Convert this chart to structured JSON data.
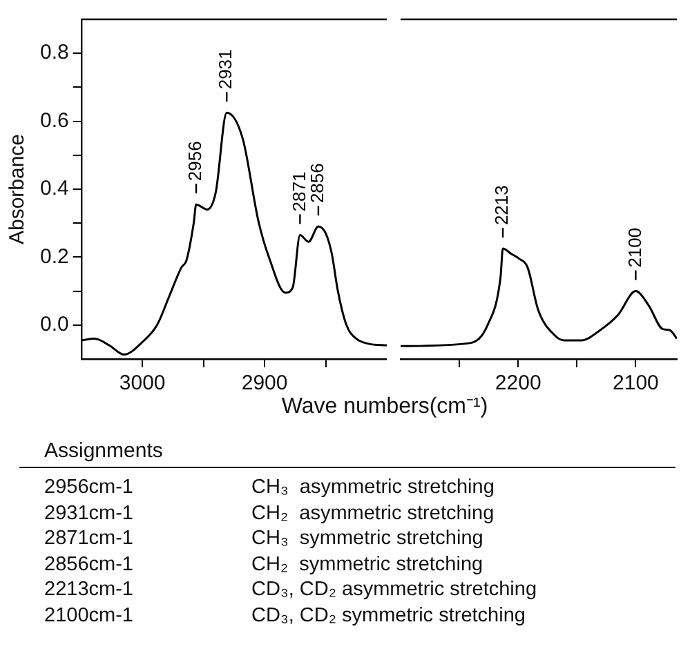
{
  "chart_data": [
    {
      "type": "line",
      "xlabel": "Wave numbers(cm⁻¹)",
      "ylabel": "Absorbance",
      "xlim": [
        3050,
        2800
      ],
      "ylim": [
        -0.1,
        0.9
      ],
      "xticks": [
        3000,
        {
          "value": 2950,
          "label": null
        },
        2900,
        {
          "value": 2850,
          "label": null
        }
      ],
      "yticks": [
        {
          "value": 0,
          "label": "0.0"
        },
        {
          "value": 0.1,
          "label": null
        },
        0.2,
        {
          "value": 0.3,
          "label": null
        },
        0.4,
        {
          "value": 0.5,
          "label": null
        },
        0.6,
        {
          "value": 0.7,
          "label": null
        },
        0.8
      ],
      "grid": false,
      "legend": false,
      "marker": "none",
      "line_style": "solid",
      "color": "#000000",
      "x": [
        3050,
        3039,
        3027,
        3015,
        3000,
        2988,
        2978,
        2968,
        2964,
        2958,
        2956,
        2947,
        2940,
        2931,
        2918,
        2905,
        2896,
        2883,
        2877,
        2871,
        2864,
        2856,
        2850,
        2845,
        2840,
        2833,
        2825,
        2815,
        2800
      ],
      "values": [
        -0.045,
        -0.04,
        -0.06,
        -0.087,
        -0.05,
        0.0,
        0.085,
        0.17,
        0.19,
        0.3,
        0.355,
        0.34,
        0.39,
        0.625,
        0.55,
        0.305,
        0.195,
        0.095,
        0.11,
        0.265,
        0.245,
        0.29,
        0.27,
        0.21,
        0.1,
        0.0,
        -0.04,
        -0.055,
        -0.06
      ],
      "annotations": [
        {
          "text": "2956",
          "x": 2956,
          "y": 0.355
        },
        {
          "text": "2931",
          "x": 2931,
          "y": 0.625
        },
        {
          "text": "2871",
          "x": 2871,
          "y": 0.265
        },
        {
          "text": "2856",
          "x": 2856,
          "y": 0.29
        }
      ]
    },
    {
      "type": "line",
      "xlim": [
        2300,
        2065
      ],
      "ylim": [
        -0.1,
        0.9
      ],
      "tick_labels": "x",
      "xticks": [
        {
          "value": 2250,
          "label": null
        },
        2200,
        {
          "value": 2150,
          "label": null
        },
        2100
      ],
      "grid": false,
      "legend": false,
      "marker": "none",
      "line_style": "solid",
      "color": "#000000",
      "x": [
        2300,
        2241,
        2226,
        2215,
        2213,
        2206,
        2199,
        2192,
        2183,
        2169,
        2161,
        2146,
        2131,
        2115,
        2100,
        2089,
        2077,
        2071,
        2065
      ],
      "values": [
        -0.062,
        -0.053,
        0.0,
        0.14,
        0.225,
        0.21,
        0.195,
        0.17,
        0.045,
        -0.03,
        -0.045,
        -0.045,
        -0.017,
        0.03,
        0.1,
        0.058,
        -0.012,
        -0.015,
        -0.04
      ],
      "annotations": [
        {
          "text": "2213",
          "x": 2213,
          "y": 0.225
        },
        {
          "text": "2100",
          "x": 2100,
          "y": 0.1
        }
      ]
    },
    {
      "type": "other",
      "title": "Assignments",
      "annotations": [
        "2956cm-1",
        "CH₃  asymmetric stretching",
        "2931cm-1",
        "CH₂  asymmetric stretching",
        "2871cm-1",
        "CH₃  symmetric stretching",
        "2856cm-1",
        "CH₂  symmetric stretching",
        "2213cm-1",
        "CD₃, CD₂ asymmetric stretching",
        "2100cm-1",
        "CD₃, CD₂ symmetric stretching"
      ]
    }
  ]
}
